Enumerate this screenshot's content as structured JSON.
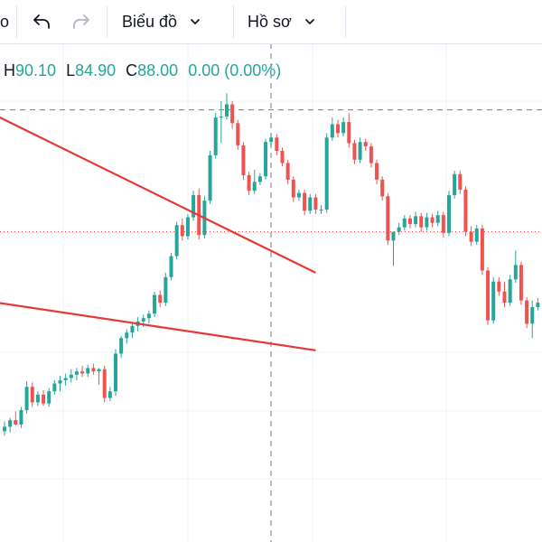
{
  "toolbar": {
    "edge_label": "o",
    "undo_icon": "undo-icon",
    "redo_icon": "redo-icon",
    "chart_menu_label": "Biểu đồ",
    "profile_menu_label": "Hồ sơ",
    "dropdown_icon": "chevron-down-icon"
  },
  "ohlc": {
    "high_key": "H",
    "high": "90.10",
    "low_key": "L",
    "low": "84.90",
    "close_key": "C",
    "close": "88.00",
    "change": "0.00 (0.00%)"
  },
  "colors": {
    "up": "#26a69a",
    "down": "#ef5350",
    "trendline": "#e53935",
    "grid": "#f0f3fa"
  },
  "chart_data": {
    "type": "candlestick",
    "ylim": [
      60,
      105
    ],
    "reference_levels": {
      "dashed": 99.0,
      "dotted": 88.0
    },
    "candles": [
      {
        "o": 70.0,
        "h": 70.9,
        "l": 69.6,
        "c": 70.4
      },
      {
        "o": 70.4,
        "h": 71.2,
        "l": 69.9,
        "c": 71.0
      },
      {
        "o": 71.0,
        "h": 71.8,
        "l": 70.5,
        "c": 70.6
      },
      {
        "o": 70.6,
        "h": 72.2,
        "l": 70.3,
        "c": 71.9
      },
      {
        "o": 71.9,
        "h": 74.5,
        "l": 71.6,
        "c": 74.0
      },
      {
        "o": 74.0,
        "h": 74.4,
        "l": 72.2,
        "c": 72.6
      },
      {
        "o": 72.6,
        "h": 73.6,
        "l": 72.3,
        "c": 73.3
      },
      {
        "o": 73.3,
        "h": 73.7,
        "l": 72.3,
        "c": 72.5
      },
      {
        "o": 72.5,
        "h": 73.9,
        "l": 72.2,
        "c": 73.6
      },
      {
        "o": 73.6,
        "h": 74.6,
        "l": 73.3,
        "c": 74.3
      },
      {
        "o": 74.3,
        "h": 75.0,
        "l": 73.6,
        "c": 74.6
      },
      {
        "o": 74.6,
        "h": 75.2,
        "l": 74.1,
        "c": 74.8
      },
      {
        "o": 74.8,
        "h": 75.6,
        "l": 74.4,
        "c": 75.1
      },
      {
        "o": 75.1,
        "h": 75.7,
        "l": 74.6,
        "c": 75.4
      },
      {
        "o": 75.4,
        "h": 75.9,
        "l": 74.9,
        "c": 75.2
      },
      {
        "o": 75.2,
        "h": 76.0,
        "l": 74.9,
        "c": 75.7
      },
      {
        "o": 75.7,
        "h": 76.1,
        "l": 75.1,
        "c": 75.4
      },
      {
        "o": 75.4,
        "h": 75.7,
        "l": 74.2,
        "c": 75.6
      },
      {
        "o": 75.6,
        "h": 75.9,
        "l": 72.6,
        "c": 73.0
      },
      {
        "o": 73.0,
        "h": 74.0,
        "l": 72.7,
        "c": 73.6
      },
      {
        "o": 73.6,
        "h": 77.4,
        "l": 73.2,
        "c": 77.0
      },
      {
        "o": 77.0,
        "h": 78.6,
        "l": 76.6,
        "c": 78.4
      },
      {
        "o": 78.4,
        "h": 79.2,
        "l": 77.9,
        "c": 78.9
      },
      {
        "o": 78.9,
        "h": 79.7,
        "l": 78.4,
        "c": 79.5
      },
      {
        "o": 79.5,
        "h": 80.3,
        "l": 79.0,
        "c": 79.9
      },
      {
        "o": 79.9,
        "h": 80.5,
        "l": 79.4,
        "c": 80.2
      },
      {
        "o": 80.2,
        "h": 80.9,
        "l": 79.7,
        "c": 80.6
      },
      {
        "o": 80.6,
        "h": 82.6,
        "l": 80.3,
        "c": 82.3
      },
      {
        "o": 82.3,
        "h": 82.7,
        "l": 81.2,
        "c": 81.6
      },
      {
        "o": 81.6,
        "h": 84.3,
        "l": 81.3,
        "c": 83.9
      },
      {
        "o": 83.9,
        "h": 86.1,
        "l": 83.6,
        "c": 85.8
      },
      {
        "o": 85.8,
        "h": 88.9,
        "l": 85.5,
        "c": 88.6
      },
      {
        "o": 88.6,
        "h": 89.2,
        "l": 87.2,
        "c": 87.6
      },
      {
        "o": 87.6,
        "h": 89.6,
        "l": 87.3,
        "c": 89.3
      },
      {
        "o": 89.3,
        "h": 91.7,
        "l": 89.0,
        "c": 91.3
      },
      {
        "o": 91.3,
        "h": 91.9,
        "l": 87.3,
        "c": 87.7
      },
      {
        "o": 87.7,
        "h": 91.2,
        "l": 87.4,
        "c": 90.8
      },
      {
        "o": 90.8,
        "h": 95.3,
        "l": 90.5,
        "c": 94.9
      },
      {
        "o": 94.9,
        "h": 98.7,
        "l": 94.6,
        "c": 98.3
      },
      {
        "o": 98.3,
        "h": 99.8,
        "l": 96.0,
        "c": 98.4
      },
      {
        "o": 98.4,
        "h": 100.5,
        "l": 98.1,
        "c": 99.5
      },
      {
        "o": 99.5,
        "h": 99.8,
        "l": 97.3,
        "c": 97.8
      },
      {
        "o": 97.8,
        "h": 98.1,
        "l": 95.4,
        "c": 95.8
      },
      {
        "o": 95.8,
        "h": 96.1,
        "l": 92.7,
        "c": 93.1
      },
      {
        "o": 93.1,
        "h": 93.4,
        "l": 91.3,
        "c": 91.7
      },
      {
        "o": 91.7,
        "h": 93.6,
        "l": 91.4,
        "c": 92.5
      },
      {
        "o": 92.5,
        "h": 93.3,
        "l": 92.2,
        "c": 93.0
      },
      {
        "o": 93.0,
        "h": 96.4,
        "l": 92.7,
        "c": 96.1
      },
      {
        "o": 96.1,
        "h": 96.8,
        "l": 95.7,
        "c": 96.5
      },
      {
        "o": 96.5,
        "h": 96.8,
        "l": 94.9,
        "c": 95.3
      },
      {
        "o": 95.3,
        "h": 95.6,
        "l": 93.9,
        "c": 94.2
      },
      {
        "o": 94.2,
        "h": 94.5,
        "l": 92.3,
        "c": 92.7
      },
      {
        "o": 92.7,
        "h": 93.0,
        "l": 90.7,
        "c": 91.1
      },
      {
        "o": 91.1,
        "h": 91.8,
        "l": 90.8,
        "c": 91.5
      },
      {
        "o": 91.5,
        "h": 91.8,
        "l": 89.5,
        "c": 89.9
      },
      {
        "o": 89.9,
        "h": 91.4,
        "l": 89.6,
        "c": 91.1
      },
      {
        "o": 91.1,
        "h": 91.4,
        "l": 89.6,
        "c": 90.0
      },
      {
        "o": 90.0,
        "h": 90.4,
        "l": 89.6,
        "c": 90.0
      },
      {
        "o": 90.0,
        "h": 96.9,
        "l": 89.7,
        "c": 96.5
      },
      {
        "o": 96.5,
        "h": 98.3,
        "l": 96.2,
        "c": 97.7
      },
      {
        "o": 97.7,
        "h": 98.1,
        "l": 96.5,
        "c": 96.9
      },
      {
        "o": 96.9,
        "h": 98.3,
        "l": 96.6,
        "c": 97.9
      },
      {
        "o": 97.9,
        "h": 98.7,
        "l": 95.6,
        "c": 96.0
      },
      {
        "o": 96.0,
        "h": 96.3,
        "l": 94.1,
        "c": 94.5
      },
      {
        "o": 94.5,
        "h": 96.5,
        "l": 94.2,
        "c": 96.1
      },
      {
        "o": 96.1,
        "h": 96.4,
        "l": 95.3,
        "c": 95.7
      },
      {
        "o": 95.7,
        "h": 96.0,
        "l": 93.8,
        "c": 94.2
      },
      {
        "o": 94.2,
        "h": 94.5,
        "l": 92.3,
        "c": 92.7
      },
      {
        "o": 92.7,
        "h": 93.0,
        "l": 90.8,
        "c": 91.2
      },
      {
        "o": 91.2,
        "h": 91.5,
        "l": 86.8,
        "c": 87.2
      },
      {
        "o": 87.2,
        "h": 88.0,
        "l": 84.9,
        "c": 88.0
      },
      {
        "o": 88.0,
        "h": 88.8,
        "l": 87.7,
        "c": 88.4
      },
      {
        "o": 88.4,
        "h": 89.5,
        "l": 88.1,
        "c": 89.2
      },
      {
        "o": 89.2,
        "h": 89.5,
        "l": 88.3,
        "c": 88.7
      },
      {
        "o": 88.7,
        "h": 89.8,
        "l": 88.4,
        "c": 89.4
      },
      {
        "o": 89.4,
        "h": 89.7,
        "l": 88.0,
        "c": 88.4
      },
      {
        "o": 88.4,
        "h": 89.7,
        "l": 88.1,
        "c": 89.3
      },
      {
        "o": 89.3,
        "h": 89.6,
        "l": 88.4,
        "c": 88.8
      },
      {
        "o": 88.8,
        "h": 89.9,
        "l": 88.5,
        "c": 89.5
      },
      {
        "o": 89.5,
        "h": 89.8,
        "l": 87.5,
        "c": 87.9
      },
      {
        "o": 87.9,
        "h": 91.7,
        "l": 87.6,
        "c": 91.3
      },
      {
        "o": 91.3,
        "h": 93.5,
        "l": 91.0,
        "c": 93.2
      },
      {
        "o": 93.2,
        "h": 93.5,
        "l": 91.4,
        "c": 91.8
      },
      {
        "o": 91.8,
        "h": 92.1,
        "l": 87.6,
        "c": 88.0
      },
      {
        "o": 88.0,
        "h": 88.5,
        "l": 86.7,
        "c": 87.1
      },
      {
        "o": 87.1,
        "h": 88.6,
        "l": 86.8,
        "c": 88.3
      },
      {
        "o": 88.3,
        "h": 88.6,
        "l": 84.1,
        "c": 84.5
      },
      {
        "o": 84.5,
        "h": 84.8,
        "l": 79.6,
        "c": 80.0
      },
      {
        "o": 80.0,
        "h": 83.9,
        "l": 79.7,
        "c": 83.5
      },
      {
        "o": 83.5,
        "h": 83.9,
        "l": 82.2,
        "c": 82.6
      },
      {
        "o": 82.6,
        "h": 83.5,
        "l": 81.2,
        "c": 81.6
      },
      {
        "o": 81.6,
        "h": 84.1,
        "l": 81.3,
        "c": 83.7
      },
      {
        "o": 83.7,
        "h": 86.3,
        "l": 83.4,
        "c": 85.0
      },
      {
        "o": 85.0,
        "h": 85.3,
        "l": 81.4,
        "c": 81.8
      },
      {
        "o": 81.8,
        "h": 82.1,
        "l": 79.3,
        "c": 79.7
      },
      {
        "o": 79.7,
        "h": 81.8,
        "l": 78.4,
        "c": 81.2
      },
      {
        "o": 81.2,
        "h": 82.0,
        "l": 80.9,
        "c": 81.6
      }
    ],
    "trendlines": [
      {
        "x1": -8.1,
        "y1": 100.1,
        "x2": 56.0,
        "y2": 84.3
      },
      {
        "x1": -128.0,
        "y1": 91.1,
        "x2": 56.0,
        "y2": 77.3
      }
    ]
  }
}
